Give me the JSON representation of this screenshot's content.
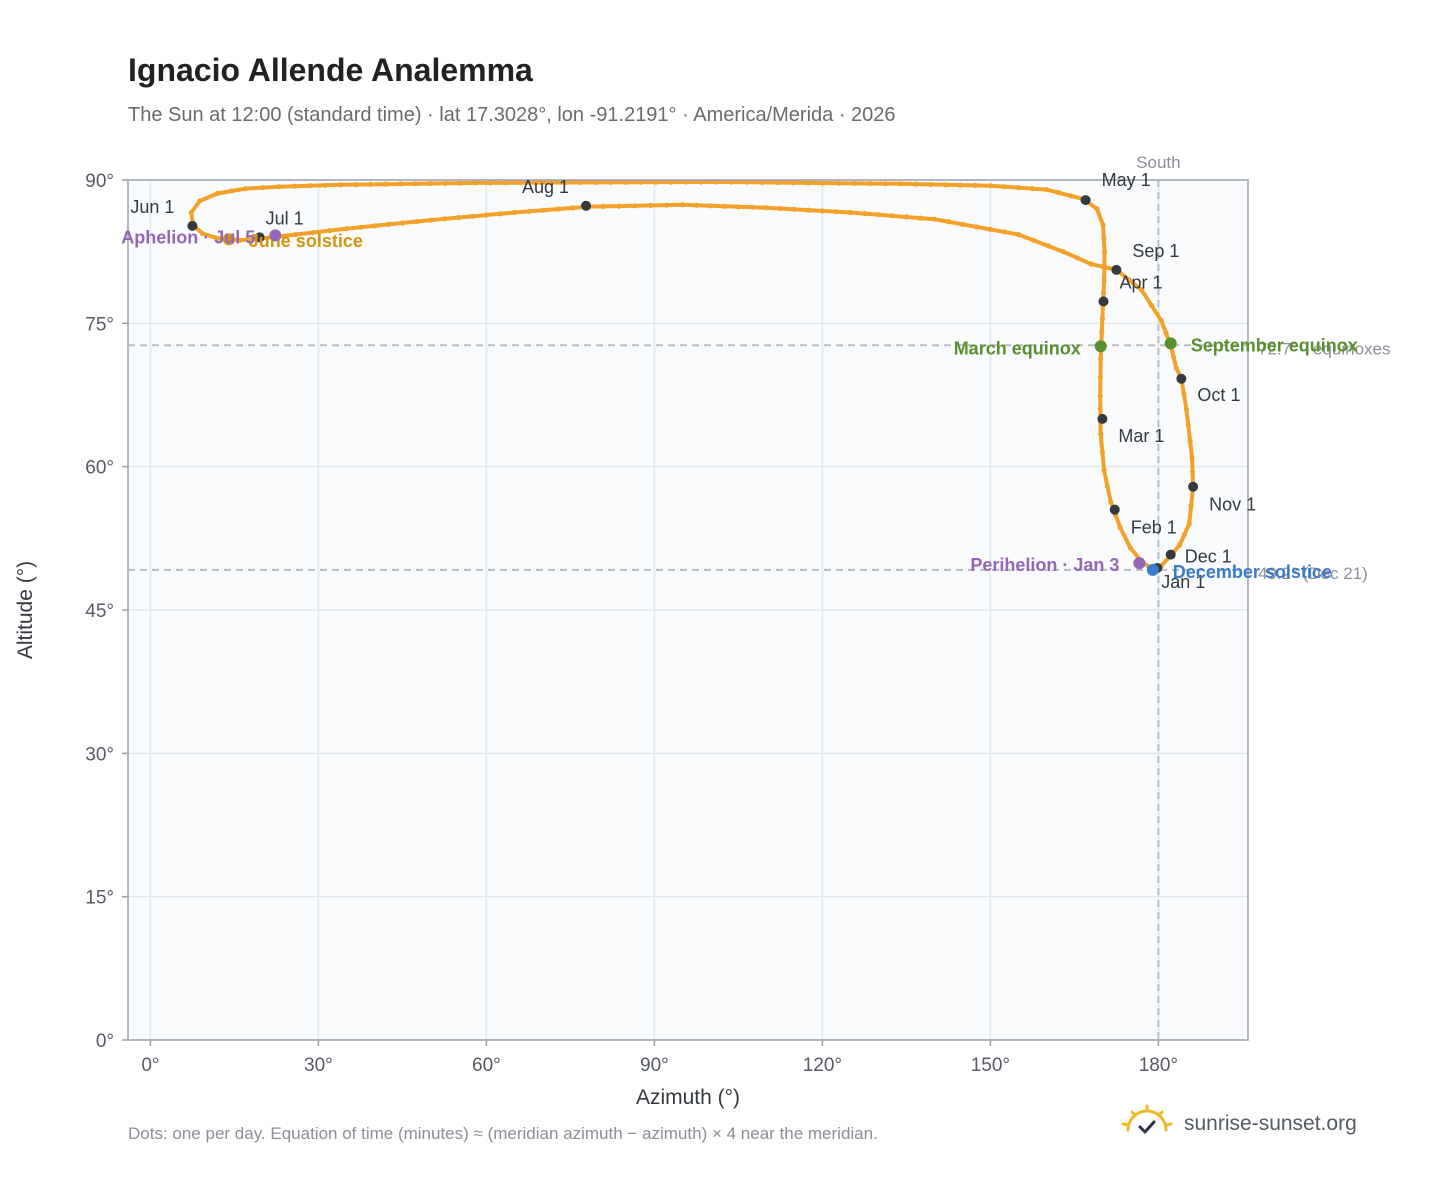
{
  "title": "Ignacio Allende Analemma",
  "subtitle": "The Sun at 12:00 (standard time) · lat 17.3028°, lon -91.2191° · America/Merida · 2026",
  "footnote": "Dots: one per day. Equation of time (minutes) ≈ (meridian azimuth − azimuth) × 4 near the meridian.",
  "brand": {
    "name": "sunrise-sunset.org",
    "logo_icon": "sun-check-icon"
  },
  "colors": {
    "analemma": "#f2a22a",
    "month_marker": "#343a40",
    "equinox": "#5a8f2e",
    "june_solstice": "#d4960f",
    "december_solstice": "#3a7bc8",
    "apsis": "#9466b5",
    "reference_line": "#b8bec6",
    "plot_bg": "#f9fbfd",
    "grid": "#e3e8ee",
    "frame": "#9aa3ae"
  },
  "chart_data": {
    "type": "scatter",
    "xlabel": "Azimuth (°)",
    "ylabel": "Altitude (°)",
    "xlim": [
      -4,
      196
    ],
    "ylim": [
      0,
      90
    ],
    "xticks": [
      0,
      30,
      60,
      90,
      120,
      150,
      180
    ],
    "yticks": [
      0,
      15,
      30,
      45,
      60,
      75,
      90
    ],
    "xtick_labels": [
      "0°",
      "30°",
      "60°",
      "90°",
      "120°",
      "150°",
      "180°"
    ],
    "ytick_labels": [
      "0°",
      "15°",
      "30°",
      "45°",
      "60°",
      "75°",
      "90°"
    ],
    "grid": true,
    "meridian": {
      "azimuth": 180,
      "label": "South"
    },
    "reference_lines": [
      {
        "altitude": 72.7,
        "label": "72.7° · equinoxes"
      },
      {
        "altitude": 49.2,
        "label": "49.2° (Dec 21)"
      }
    ],
    "analemma_path": [
      [
        179.0,
        49.2
      ],
      [
        176.8,
        50.2
      ],
      [
        175.0,
        51.5
      ],
      [
        173.2,
        53.6
      ],
      [
        171.5,
        56.3
      ],
      [
        170.3,
        59.6
      ],
      [
        169.7,
        63.4
      ],
      [
        169.6,
        67.4
      ],
      [
        169.7,
        71.3
      ],
      [
        170.0,
        75.5
      ],
      [
        170.3,
        79.5
      ],
      [
        170.4,
        82.5
      ],
      [
        170.1,
        85.3
      ],
      [
        169.0,
        87.0
      ],
      [
        166.6,
        88.0
      ],
      [
        160.0,
        89.0
      ],
      [
        150.0,
        89.4
      ],
      [
        134.0,
        89.6
      ],
      [
        101.0,
        89.8
      ],
      [
        58.0,
        89.7
      ],
      [
        34.0,
        89.5
      ],
      [
        23.0,
        89.3
      ],
      [
        17.0,
        89.1
      ],
      [
        12.0,
        88.6
      ],
      [
        8.8,
        87.8
      ],
      [
        7.3,
        86.6
      ],
      [
        7.6,
        85.3
      ],
      [
        9.3,
        84.4
      ],
      [
        12.0,
        83.9
      ],
      [
        16.0,
        83.7
      ],
      [
        20.0,
        83.9
      ],
      [
        26.0,
        84.3
      ],
      [
        35.0,
        84.9
      ],
      [
        50.0,
        85.8
      ],
      [
        65.0,
        86.6
      ],
      [
        78.0,
        87.2
      ],
      [
        95.0,
        87.4
      ],
      [
        110.0,
        87.1
      ],
      [
        125.0,
        86.6
      ],
      [
        140.0,
        85.9
      ],
      [
        155.0,
        84.3
      ],
      [
        163.0,
        82.5
      ],
      [
        168.0,
        81.2
      ],
      [
        172.5,
        80.6
      ],
      [
        177.0,
        78.5
      ],
      [
        180.5,
        75.3
      ],
      [
        182.2,
        72.7
      ],
      [
        183.2,
        70.3
      ],
      [
        184.1,
        69.2
      ],
      [
        185.0,
        66.0
      ],
      [
        186.0,
        61.0
      ],
      [
        186.2,
        57.9
      ],
      [
        185.5,
        54.0
      ],
      [
        183.8,
        51.8
      ],
      [
        182.2,
        50.7
      ],
      [
        180.5,
        49.6
      ],
      [
        179.0,
        49.2
      ]
    ],
    "month_markers": [
      {
        "label": "Jan 1",
        "az": 179.8,
        "alt": 49.4
      },
      {
        "label": "Feb 1",
        "az": 172.2,
        "alt": 55.5
      },
      {
        "label": "Mar 1",
        "az": 170.0,
        "alt": 65.0
      },
      {
        "label": "Apr 1",
        "az": 170.2,
        "alt": 77.3
      },
      {
        "label": "May 1",
        "az": 167.0,
        "alt": 87.9
      },
      {
        "label": "Jun 1",
        "az": 7.5,
        "alt": 85.2
      },
      {
        "label": "Jul 1",
        "az": 19.5,
        "alt": 84.0
      },
      {
        "label": "Aug 1",
        "az": 77.8,
        "alt": 87.3
      },
      {
        "label": "Sep 1",
        "az": 172.5,
        "alt": 80.6
      },
      {
        "label": "Oct 1",
        "az": 184.1,
        "alt": 69.2
      },
      {
        "label": "Nov 1",
        "az": 186.2,
        "alt": 57.9
      },
      {
        "label": "Dec 1",
        "az": 182.2,
        "alt": 50.8
      }
    ],
    "events": [
      {
        "label": "March equinox",
        "az": 169.7,
        "alt": 72.6,
        "kind": "equinox"
      },
      {
        "label": "September equinox",
        "az": 182.2,
        "alt": 72.9,
        "kind": "equinox"
      },
      {
        "label": "June solstice",
        "az": 14.0,
        "alt": 83.8,
        "kind": "june_solstice"
      },
      {
        "label": "December solstice",
        "az": 179.0,
        "alt": 49.2,
        "kind": "december_solstice"
      },
      {
        "label": "Aphelion · Jul 5",
        "az": 22.3,
        "alt": 84.2,
        "kind": "apsis"
      },
      {
        "label": "Perihelion · Jan 3",
        "az": 176.6,
        "alt": 49.9,
        "kind": "apsis"
      }
    ]
  }
}
